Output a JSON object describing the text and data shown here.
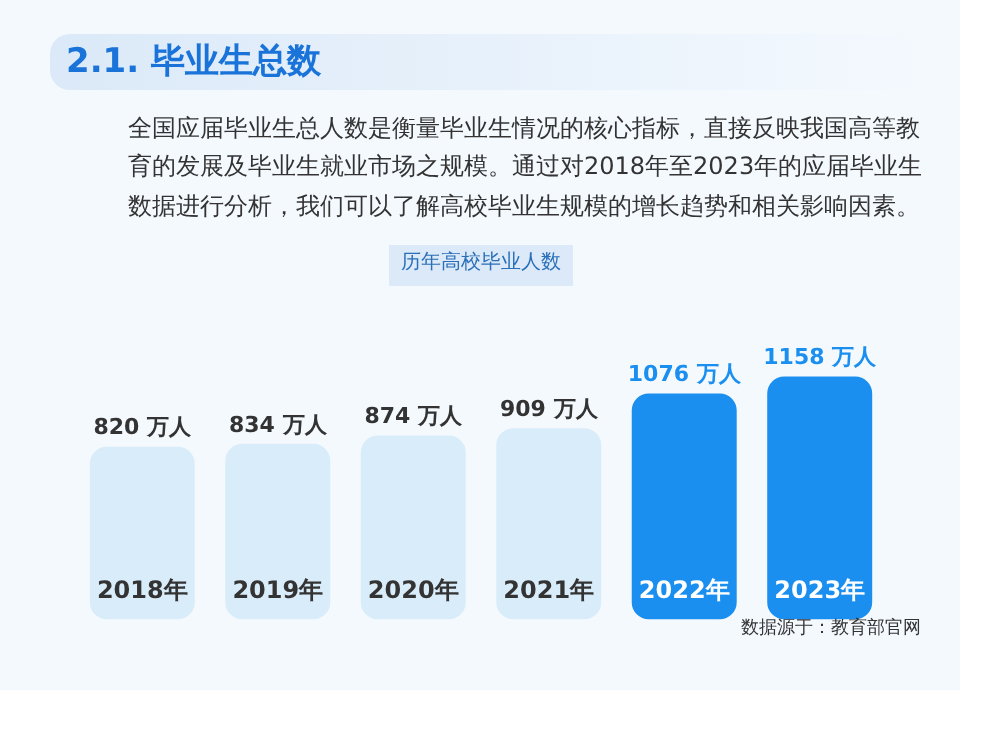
{
  "chart_data": {
    "type": "bar",
    "title": "2.1. 毕业生总数",
    "subtitle": "全国应届毕业生总人数是衡量毕业生情况的核心指标，直接反映我国高等教育的发展及毕业生就业市场之规模。通过对2018年至2023年的应届毕业生数据进行分析，我们可以了解高校毕业生规模的增长趋势和相关影响因素。",
    "categories": [
      "2018年",
      "2019年",
      "2020年",
      "2021年",
      "2022年",
      "2023年"
    ],
    "values": [
      820,
      834,
      874,
      909,
      1076,
      1158
    ],
    "value_labels": [
      "820 万人",
      "834 万人",
      "874 万人",
      "909 万人",
      "1076 万人",
      "1158 万人"
    ],
    "colors": [
      "#d9ecfa",
      "#d9ecfa",
      "#d9ecfa",
      "#d9ecfa",
      "#1a8ff0",
      "#1a8ff0"
    ],
    "annotations": [
      "历年高校毕业人数",
      "数据源于：教育部官网"
    ],
    "grid": false
  }
}
